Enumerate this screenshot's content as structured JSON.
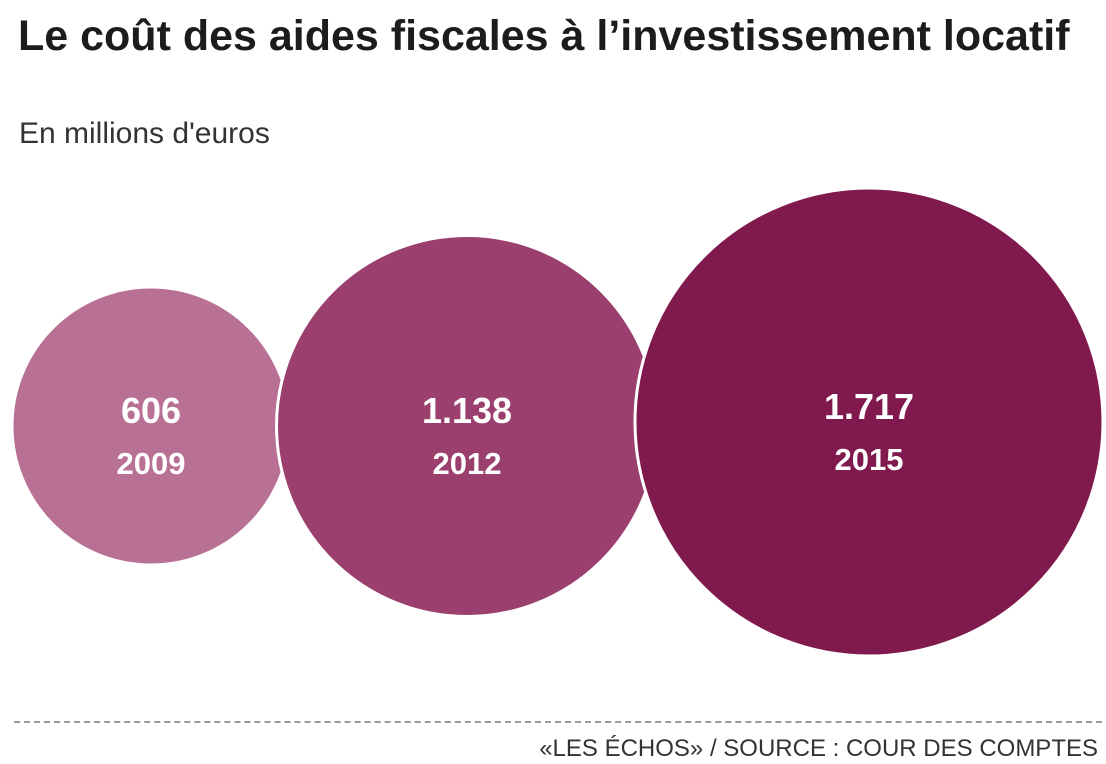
{
  "header": {
    "title": "Le coût des aides fiscales à l’investissement locatif",
    "subtitle": "En millions d'euros"
  },
  "chart_data": {
    "type": "bubble",
    "title": "Le coût des aides fiscales à l’investissement locatif",
    "subtitle": "En millions d'euros",
    "unit": "millions d'euros",
    "categories": [
      "2009",
      "2012",
      "2015"
    ],
    "values": [
      606,
      1138,
      1717
    ],
    "value_labels": [
      "606",
      "1.138",
      "1.717"
    ],
    "colors": [
      "#b87194",
      "#9b3f6e",
      "#80194d"
    ]
  },
  "footer": {
    "source": "«LES ÉCHOS»  / SOURCE : COUR DES COMPTES"
  }
}
